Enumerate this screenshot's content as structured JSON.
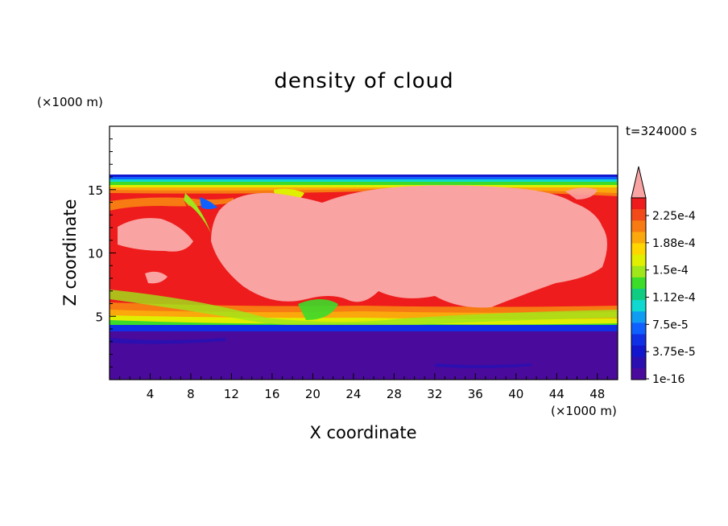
{
  "title": "density of cloud",
  "time_label": "t=324000 s",
  "chart_data": {
    "type": "heatmap",
    "title": "density of cloud",
    "xlabel": "X coordinate",
    "ylabel": "Z coordinate",
    "x_unit": "(×1000 m)",
    "y_unit": "(×1000 m)",
    "xlim": [
      0,
      50
    ],
    "ylim": [
      0,
      20
    ],
    "x_ticks": [
      "4",
      "8",
      "12",
      "16",
      "20",
      "24",
      "28",
      "32",
      "36",
      "40",
      "44",
      "48"
    ],
    "y_ticks": [
      "5",
      "10",
      "15"
    ],
    "colorbar": {
      "labels": [
        "2.25e-4",
        "1.88e-4",
        "1.5e-4",
        "1.12e-4",
        "7.5e-5",
        "3.75e-5",
        "1e-16"
      ],
      "colors_top_to_bottom": [
        "#f9a3a3",
        "#ee1c1c",
        "#f24a18",
        "#f77a12",
        "#fba80c",
        "#ffd600",
        "#e0ee00",
        "#9fe61a",
        "#3bdc2a",
        "#10cc82",
        "#0fd8d0",
        "#0f9cf2",
        "#1060ff",
        "#1030e6",
        "#1216cc",
        "#2b0fb0",
        "#4a0a9c"
      ],
      "extend": "max"
    },
    "field_extent_z": [
      0.3,
      16.0
    ],
    "field_description": "cloud layer between about z=4 and z=16 (x1000 m); dense core (above 2.25e-4) spanning x=2..47, z=6.5..15, with vortex rolls near x=17,z=14 and x=43,z=13.5; near-zero density below z=4"
  }
}
